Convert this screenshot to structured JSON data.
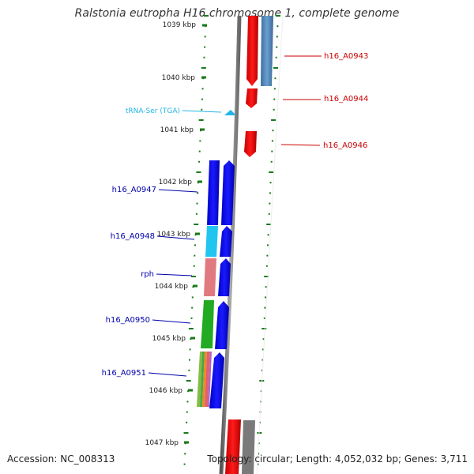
{
  "title": "Ralstonia eutropha H16 chromosome 1, complete genome",
  "footer": {
    "accession": "Accession: NC_008313",
    "stats": "Topology: circular; Length: 4,052,032 bp; Genes: 3,711"
  },
  "ticks": [
    "1039 kbp",
    "1040 kbp",
    "1041 kbp",
    "1042 kbp",
    "1043 kbp",
    "1044 kbp",
    "1045 kbp",
    "1046 kbp",
    "1047 kbp"
  ],
  "right_labels": [
    {
      "text": "h16_A0943",
      "color": "#cc0000"
    },
    {
      "text": "h16_A0944",
      "color": "#cc0000"
    },
    {
      "text": "h16_A0946",
      "color": "#cc0000"
    }
  ],
  "left_labels": [
    {
      "text": "tRNA-Ser (TGA)",
      "color": "#22b5e6"
    },
    {
      "text": "h16_A0947",
      "color": "#0000aa"
    },
    {
      "text": "h16_A0948",
      "color": "#0000aa"
    },
    {
      "text": "rph",
      "color": "#0000aa"
    },
    {
      "text": "h16_A0950",
      "color": "#0000aa"
    },
    {
      "text": "h16_A0951",
      "color": "#0000aa"
    }
  ],
  "colors": {
    "forward_gene": "#0000ee",
    "reverse_gene": "#ee0000",
    "trna": "#22b5e6",
    "backbone": "#888888",
    "tick": "#1a7a1a",
    "steel_blue": "#4682b4",
    "cyan": "#22c5f0",
    "pink": "#e07a80",
    "green": "#22aa22",
    "gray": "#7a7a7a"
  }
}
